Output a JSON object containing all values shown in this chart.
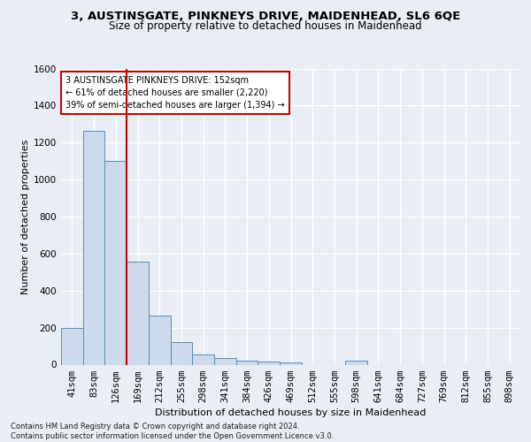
{
  "title1": "3, AUSTINSGATE, PINKNEYS DRIVE, MAIDENHEAD, SL6 6QE",
  "title2": "Size of property relative to detached houses in Maidenhead",
  "xlabel": "Distribution of detached houses by size in Maidenhead",
  "ylabel": "Number of detached properties",
  "footnote": "Contains HM Land Registry data © Crown copyright and database right 2024.\nContains public sector information licensed under the Open Government Licence v3.0.",
  "bar_labels": [
    "41sqm",
    "83sqm",
    "126sqm",
    "169sqm",
    "212sqm",
    "255sqm",
    "298sqm",
    "341sqm",
    "384sqm",
    "426sqm",
    "469sqm",
    "512sqm",
    "555sqm",
    "598sqm",
    "641sqm",
    "684sqm",
    "727sqm",
    "769sqm",
    "812sqm",
    "855sqm",
    "898sqm"
  ],
  "bar_values": [
    200,
    1265,
    1100,
    555,
    265,
    120,
    55,
    35,
    20,
    15,
    10,
    0,
    0,
    20,
    0,
    0,
    0,
    0,
    0,
    0,
    0
  ],
  "bar_color": "#ccdaeb",
  "bar_edge_color": "#5b8db8",
  "background_color": "#e8eef4",
  "grid_color": "#ffffff",
  "red_line_x": 2.5,
  "red_line_color": "#cc0000",
  "annotation_text": "3 AUSTINSGATE PINKNEYS DRIVE: 152sqm\n← 61% of detached houses are smaller (2,220)\n39% of semi-detached houses are larger (1,394) →",
  "annotation_box_color": "#ffffff",
  "annotation_box_edge": "#cc0000",
  "ylim": [
    0,
    1600
  ],
  "yticks": [
    0,
    200,
    400,
    600,
    800,
    1000,
    1200,
    1400,
    1600
  ],
  "title1_fontsize": 9.5,
  "title2_fontsize": 8.5,
  "xlabel_fontsize": 8,
  "ylabel_fontsize": 8,
  "tick_fontsize": 7.5,
  "footnote_fontsize": 6.0
}
